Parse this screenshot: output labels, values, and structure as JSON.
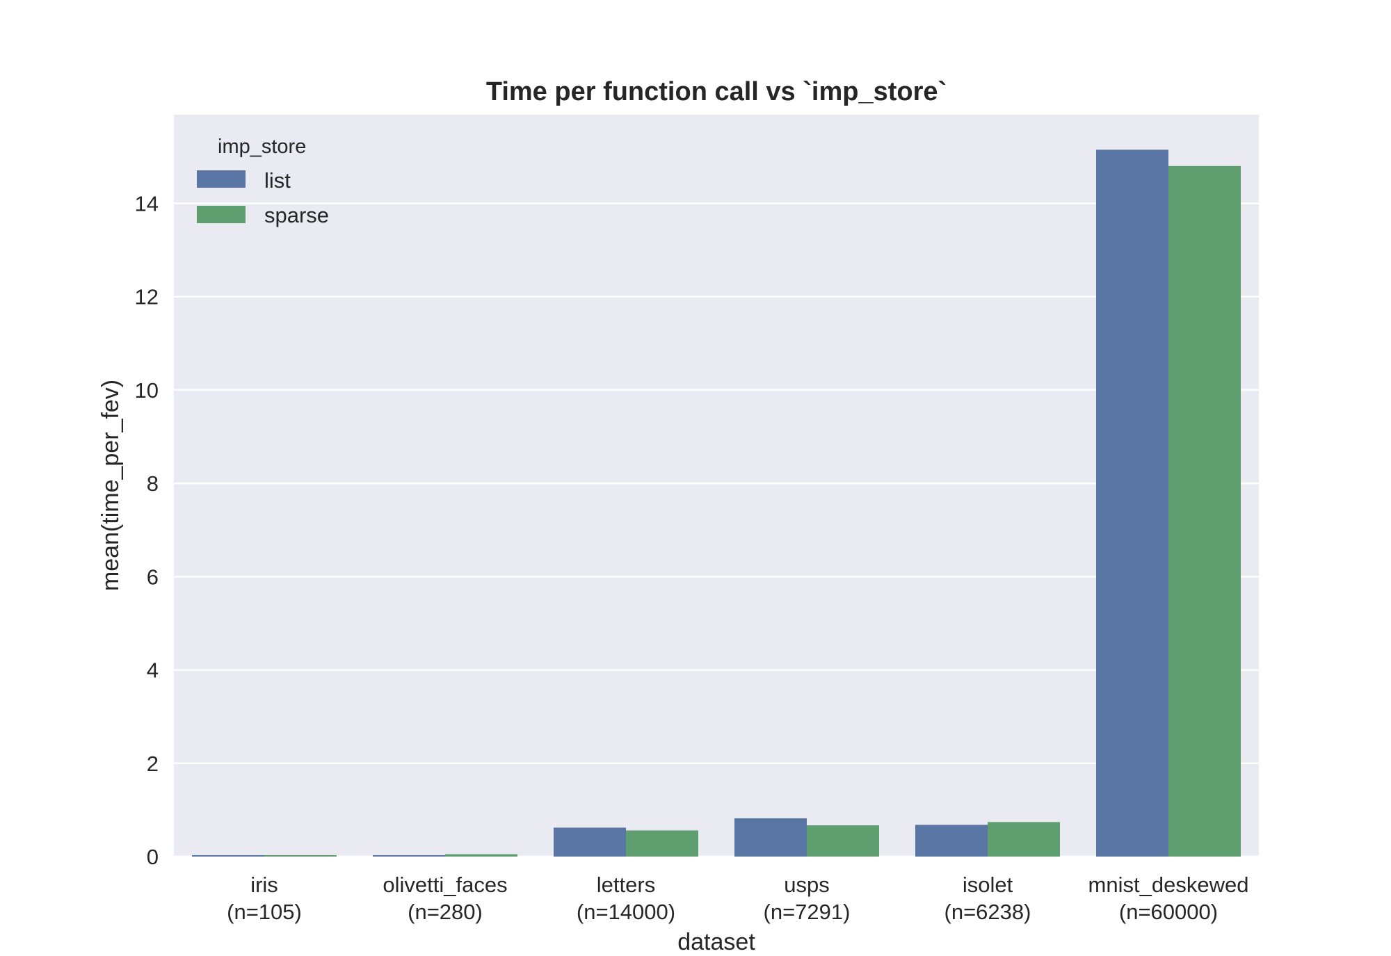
{
  "chart_data": {
    "type": "bar",
    "title": "Time per function call vs `imp_store`",
    "xlabel": "dataset",
    "ylabel": "mean(time_per_fev)",
    "categories": [
      [
        "iris",
        "(n=105)"
      ],
      [
        "olivetti_faces",
        "(n=280)"
      ],
      [
        "letters",
        "(n=14000)"
      ],
      [
        "usps",
        "(n=7291)"
      ],
      [
        "isolet",
        "(n=6238)"
      ],
      [
        "mnist_deskewed",
        "(n=60000)"
      ]
    ],
    "series": [
      {
        "name": "list",
        "color": "#5975a4",
        "values": [
          0.03,
          0.03,
          0.62,
          0.82,
          0.68,
          15.15
        ]
      },
      {
        "name": "sparse",
        "color": "#5f9e6e",
        "values": [
          0.03,
          0.05,
          0.56,
          0.67,
          0.74,
          14.8
        ]
      }
    ],
    "ylim": [
      0,
      15.9
    ],
    "yticks": [
      0,
      2,
      4,
      6,
      8,
      10,
      12,
      14
    ],
    "legend": {
      "title": "imp_store",
      "placement": "top-left"
    },
    "grid": true,
    "background": "#eaeaf2",
    "grid_color": "#ffffff"
  }
}
